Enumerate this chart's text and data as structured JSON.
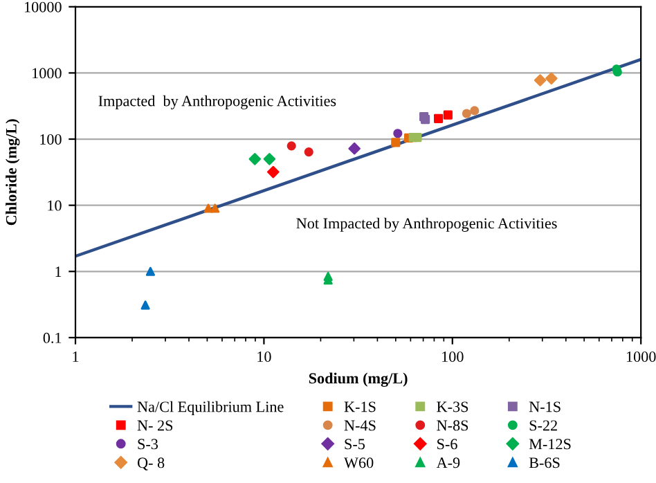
{
  "chart_data": {
    "type": "scatter",
    "xlabel": "Sodium (mg/L)",
    "ylabel": "Chloride (mg/L)",
    "log": "xy",
    "xlim": [
      1,
      1000
    ],
    "ylim": [
      0.1,
      10000
    ],
    "xticks": [
      1,
      10,
      100,
      1000
    ],
    "yticks": [
      0.1,
      1,
      10,
      100,
      1000,
      10000
    ],
    "grid": "y",
    "legend": "bottom",
    "annotations": [
      "Impacted  by Anthropogenic Activities",
      "Not Impacted by Anthropogenic Activities"
    ],
    "series": [
      {
        "name": "Na/Cl Equilibrium Line",
        "type": "line",
        "color": "#2f4f8a",
        "marker": "none",
        "line_style": "solid",
        "x": [
          1,
          1000
        ],
        "values": [
          1.7,
          1600
        ]
      },
      {
        "name": "K-1S",
        "color": "#e46c0a",
        "marker": "square",
        "x": [
          50,
          58.6
        ],
        "values": [
          89,
          104
        ]
      },
      {
        "name": "K-3S",
        "color": "#9bbb59",
        "marker": "square",
        "x": [
          62,
          65
        ],
        "values": [
          106,
          106
        ]
      },
      {
        "name": "N-1S",
        "color": "#8064a2",
        "marker": "square",
        "x": [
          70.6,
          71.8
        ],
        "values": [
          218,
          198
        ]
      },
      {
        "name": "N- 2S",
        "color": "#ff0000",
        "marker": "square",
        "x": [
          84.3,
          94.7
        ],
        "values": [
          204,
          232
        ]
      },
      {
        "name": "N-4S",
        "color": "#d9864a",
        "marker": "circle",
        "x": [
          119,
          131
        ],
        "values": [
          244,
          269
        ]
      },
      {
        "name": "N-8S",
        "color": "#e31a1c",
        "marker": "circle",
        "x": [
          14,
          17.3
        ],
        "values": [
          79,
          64
        ]
      },
      {
        "name": "S-22",
        "color": "#00b050",
        "marker": "circle",
        "x": [
          742,
          751
        ],
        "values": [
          1140,
          1035
        ]
      },
      {
        "name": "S-3",
        "color": "#7030a0",
        "marker": "circle",
        "x": [
          51.3
        ],
        "values": [
          122
        ]
      },
      {
        "name": "S-5",
        "color": "#7030a0",
        "marker": "diamond",
        "x": [
          30.2
        ],
        "values": [
          72
        ]
      },
      {
        "name": "S-6",
        "color": "#ff0000",
        "marker": "diamond",
        "x": [
          11.2
        ],
        "values": [
          31.8
        ]
      },
      {
        "name": "M-12S",
        "color": "#00b050",
        "marker": "diamond",
        "x": [
          8.95,
          10.7
        ],
        "values": [
          50,
          50
        ]
      },
      {
        "name": "Q- 8",
        "color": "#e68a3c",
        "marker": "diamond",
        "x": [
          292,
          335
        ],
        "values": [
          774,
          826
        ]
      },
      {
        "name": "W60",
        "color": "#e46c0a",
        "marker": "triangle",
        "x": [
          5.07,
          5.5
        ],
        "values": [
          9,
          9
        ]
      },
      {
        "name": "A-9",
        "color": "#00b050",
        "marker": "triangle",
        "x": [
          21.9,
          21.9
        ],
        "values": [
          0.84,
          0.74
        ]
      },
      {
        "name": "B-6S",
        "color": "#0070c0",
        "marker": "triangle",
        "x": [
          2.5,
          2.35
        ],
        "values": [
          1.0,
          0.31
        ]
      }
    ]
  }
}
